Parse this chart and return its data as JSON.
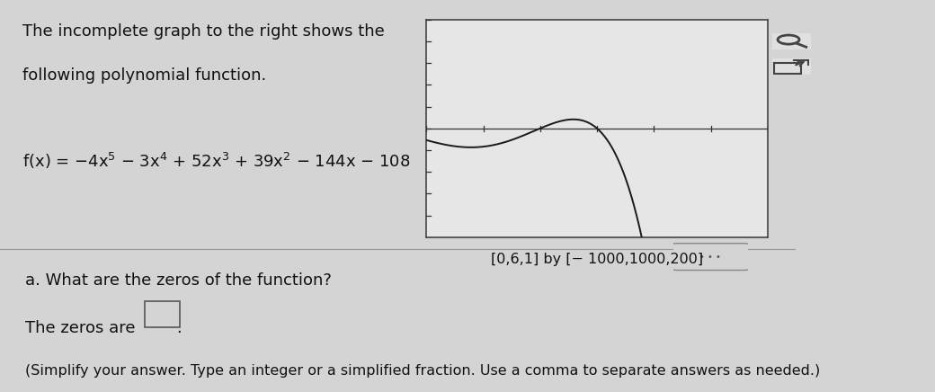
{
  "title_line1": "The incomplete graph to the right shows the",
  "title_line2": "following polynomial function.",
  "func_text": "f(x) = − 4x⁵ − 3x⁴ + 52x³ + 39x² − 144x − 108",
  "window_label": "[0,6,1] by [− 1000,1000,200]",
  "question_a": "a. What are the zeros of the function?",
  "zeros_line": "The zeros are",
  "footnote": "(Simplify your answer. Type an integer or a simplified fraction. Use a comma to separate answers as needed.)",
  "x_min": 0,
  "x_max": 6,
  "y_min": -1000,
  "y_max": 1000,
  "y_tick_step": 200,
  "bg_color": "#d4d4d4",
  "plot_bg_color": "#e6e6e6",
  "curve_color": "#1a1a1a",
  "axis_line_color": "#333333",
  "tick_color": "#333333",
  "text_color": "#111111",
  "divider_color": "#999999",
  "border_color": "#444444",
  "icon_bg": "#e0e0e0",
  "dots_bg": "#e0e0e0"
}
